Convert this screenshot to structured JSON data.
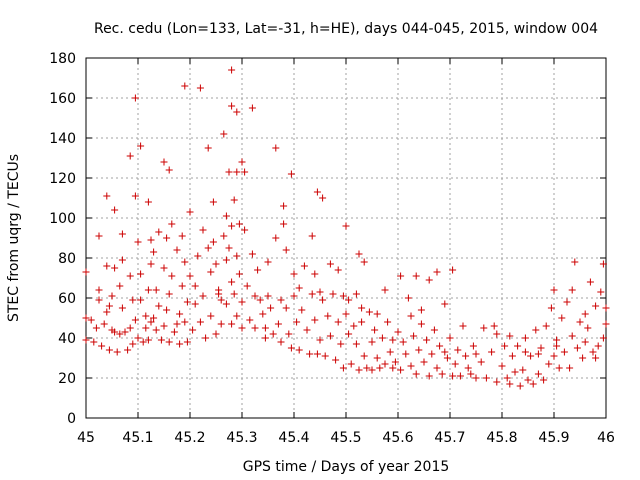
{
  "chart_data": {
    "type": "scatter",
    "title": "Rec. cedu (Lon=133, Lat=-31, h=HE), days 044-045, 2015, window 004",
    "xlabel": "GPS time / Days of year 2015",
    "ylabel": "STEC from uqrg / TECUs",
    "xlim": [
      45,
      46
    ],
    "ylim": [
      0,
      180
    ],
    "xticks": [
      45,
      45.1,
      45.2,
      45.3,
      45.4,
      45.5,
      45.6,
      45.7,
      45.8,
      45.9,
      46
    ],
    "xtick_labels": [
      "45",
      "45.1",
      "45.2",
      "45.3",
      "45.4",
      "45.5",
      "45.6",
      "45.7",
      "45.8",
      "45.9",
      "46"
    ],
    "yticks": [
      0,
      20,
      40,
      60,
      80,
      100,
      120,
      140,
      160,
      180
    ],
    "ytick_labels": [
      "0",
      "20",
      "40",
      "60",
      "80",
      "100",
      "120",
      "140",
      "160",
      "180"
    ],
    "grid": true,
    "marker": "+",
    "color": "#cc0000",
    "series": [
      {
        "name": "STEC",
        "points": [
          [
            45.0,
            50
          ],
          [
            45.0,
            73
          ],
          [
            45.0,
            39
          ],
          [
            45.01,
            49
          ],
          [
            45.015,
            38
          ],
          [
            45.02,
            45
          ],
          [
            45.025,
            59
          ],
          [
            45.025,
            64
          ],
          [
            45.025,
            91
          ],
          [
            45.03,
            36
          ],
          [
            45.035,
            47
          ],
          [
            45.04,
            76
          ],
          [
            45.04,
            111
          ],
          [
            45.04,
            53
          ],
          [
            45.045,
            34
          ],
          [
            45.05,
            44
          ],
          [
            45.05,
            61
          ],
          [
            45.055,
            104
          ],
          [
            45.055,
            75
          ],
          [
            45.055,
            43
          ],
          [
            45.06,
            33
          ],
          [
            45.065,
            42
          ],
          [
            45.065,
            66
          ],
          [
            45.07,
            92
          ],
          [
            45.07,
            79
          ],
          [
            45.07,
            55
          ],
          [
            45.075,
            43
          ],
          [
            45.08,
            34
          ],
          [
            45.085,
            131
          ],
          [
            45.085,
            71
          ],
          [
            45.085,
            45
          ],
          [
            45.09,
            59
          ],
          [
            45.09,
            37
          ],
          [
            45.095,
            160
          ],
          [
            45.095,
            111
          ],
          [
            45.095,
            49
          ],
          [
            45.1,
            40
          ],
          [
            45.1,
            88
          ],
          [
            45.105,
            136
          ],
          [
            45.105,
            72
          ],
          [
            45.105,
            59
          ],
          [
            45.11,
            38
          ],
          [
            45.115,
            45
          ],
          [
            45.115,
            51
          ],
          [
            45.12,
            108
          ],
          [
            45.12,
            64
          ],
          [
            45.12,
            39
          ],
          [
            45.125,
            89
          ],
          [
            45.125,
            77
          ],
          [
            45.125,
            48
          ],
          [
            45.13,
            83
          ],
          [
            45.135,
            64
          ],
          [
            45.135,
            44
          ],
          [
            45.14,
            93
          ],
          [
            45.14,
            56
          ],
          [
            45.145,
            39
          ],
          [
            45.15,
            128
          ],
          [
            45.15,
            75
          ],
          [
            45.15,
            46
          ],
          [
            45.155,
            90
          ],
          [
            45.155,
            54
          ],
          [
            45.16,
            124
          ],
          [
            45.16,
            62
          ],
          [
            45.16,
            38
          ],
          [
            45.165,
            97
          ],
          [
            45.165,
            71
          ],
          [
            45.17,
            43
          ],
          [
            45.175,
            84
          ],
          [
            45.18,
            52
          ],
          [
            45.18,
            37
          ],
          [
            45.185,
            91
          ],
          [
            45.185,
            66
          ],
          [
            45.19,
            166
          ],
          [
            45.19,
            78
          ],
          [
            45.19,
            48
          ],
          [
            45.195,
            58
          ],
          [
            45.195,
            38
          ],
          [
            45.2,
            103
          ],
          [
            45.2,
            71
          ],
          [
            45.205,
            44
          ],
          [
            45.21,
            66
          ],
          [
            45.21,
            57
          ],
          [
            45.215,
            81
          ],
          [
            45.22,
            165
          ],
          [
            45.22,
            48
          ],
          [
            45.225,
            94
          ],
          [
            45.225,
            61
          ],
          [
            45.23,
            40
          ],
          [
            45.235,
            135
          ],
          [
            45.235,
            85
          ],
          [
            45.24,
            73
          ],
          [
            45.24,
            51
          ],
          [
            45.245,
            108
          ],
          [
            45.245,
            88
          ],
          [
            45.25,
            77
          ],
          [
            45.25,
            42
          ],
          [
            45.255,
            64
          ],
          [
            45.26,
            59
          ],
          [
            45.26,
            47
          ],
          [
            45.265,
            142
          ],
          [
            45.265,
            91
          ],
          [
            45.27,
            101
          ],
          [
            45.27,
            79
          ],
          [
            45.27,
            57
          ],
          [
            45.275,
            123
          ],
          [
            45.275,
            85
          ],
          [
            45.28,
            174
          ],
          [
            45.28,
            156
          ],
          [
            45.28,
            96
          ],
          [
            45.28,
            68
          ],
          [
            45.28,
            47
          ],
          [
            45.285,
            109
          ],
          [
            45.285,
            62
          ],
          [
            45.29,
            153
          ],
          [
            45.29,
            123
          ],
          [
            45.29,
            81
          ],
          [
            45.29,
            51
          ],
          [
            45.295,
            97
          ],
          [
            45.295,
            72
          ],
          [
            45.3,
            128
          ],
          [
            45.3,
            58
          ],
          [
            45.3,
            45
          ],
          [
            45.305,
            123
          ],
          [
            45.305,
            94
          ],
          [
            45.31,
            66
          ],
          [
            45.315,
            49
          ],
          [
            45.32,
            155
          ],
          [
            45.32,
            82
          ],
          [
            45.325,
            61
          ],
          [
            45.325,
            45
          ],
          [
            45.33,
            74
          ],
          [
            45.335,
            59
          ],
          [
            45.34,
            52
          ],
          [
            45.345,
            45
          ],
          [
            45.35,
            78
          ],
          [
            45.35,
            61
          ],
          [
            45.355,
            55
          ],
          [
            45.36,
            42
          ],
          [
            45.365,
            135
          ],
          [
            45.365,
            90
          ],
          [
            45.37,
            47
          ],
          [
            45.375,
            59
          ],
          [
            45.375,
            38
          ],
          [
            45.38,
            106
          ],
          [
            45.38,
            97
          ],
          [
            45.385,
            84
          ],
          [
            45.385,
            55
          ],
          [
            45.39,
            42
          ],
          [
            45.395,
            122
          ],
          [
            45.395,
            35
          ],
          [
            45.4,
            72
          ],
          [
            45.4,
            61
          ],
          [
            45.405,
            48
          ],
          [
            45.41,
            34
          ],
          [
            45.415,
            54
          ],
          [
            45.42,
            76
          ],
          [
            45.425,
            44
          ],
          [
            45.43,
            32
          ],
          [
            45.435,
            91
          ],
          [
            45.435,
            62
          ],
          [
            45.44,
            49
          ],
          [
            45.445,
            113
          ],
          [
            45.445,
            32
          ],
          [
            45.45,
            63
          ],
          [
            45.45,
            39
          ],
          [
            45.455,
            110
          ],
          [
            45.455,
            59
          ],
          [
            45.46,
            31
          ],
          [
            45.465,
            51
          ],
          [
            45.47,
            77
          ],
          [
            45.47,
            41
          ],
          [
            45.475,
            62
          ],
          [
            45.48,
            29
          ],
          [
            45.485,
            74
          ],
          [
            45.485,
            48
          ],
          [
            45.49,
            37
          ],
          [
            45.495,
            61
          ],
          [
            45.495,
            25
          ],
          [
            45.5,
            96
          ],
          [
            45.5,
            52
          ],
          [
            45.505,
            59
          ],
          [
            45.505,
            42
          ],
          [
            45.51,
            27
          ],
          [
            45.515,
            46
          ],
          [
            45.52,
            62
          ],
          [
            45.52,
            37
          ],
          [
            45.525,
            82
          ],
          [
            45.525,
            24
          ],
          [
            45.53,
            48
          ],
          [
            45.535,
            78
          ],
          [
            45.535,
            31
          ],
          [
            45.54,
            25
          ],
          [
            45.545,
            53
          ],
          [
            45.55,
            38
          ],
          [
            45.55,
            24
          ],
          [
            45.555,
            44
          ],
          [
            45.56,
            30
          ],
          [
            45.565,
            25
          ],
          [
            45.57,
            40
          ],
          [
            45.575,
            64
          ],
          [
            45.575,
            27
          ],
          [
            45.58,
            48
          ],
          [
            45.585,
            33
          ],
          [
            45.59,
            25
          ],
          [
            45.595,
            28
          ],
          [
            45.6,
            43
          ],
          [
            45.605,
            71
          ],
          [
            45.605,
            24
          ],
          [
            45.61,
            38
          ],
          [
            45.615,
            32
          ],
          [
            45.62,
            60
          ],
          [
            45.625,
            26
          ],
          [
            45.63,
            41
          ],
          [
            45.635,
            71
          ],
          [
            45.635,
            22
          ],
          [
            45.64,
            34
          ],
          [
            45.645,
            47
          ],
          [
            45.65,
            28
          ],
          [
            45.655,
            39
          ],
          [
            45.66,
            69
          ],
          [
            45.66,
            21
          ],
          [
            45.665,
            32
          ],
          [
            45.67,
            44
          ],
          [
            45.675,
            73
          ],
          [
            45.675,
            25
          ],
          [
            45.68,
            36
          ],
          [
            45.685,
            22
          ],
          [
            45.69,
            57
          ],
          [
            45.695,
            30
          ],
          [
            45.7,
            40
          ],
          [
            45.705,
            74
          ],
          [
            45.705,
            21
          ],
          [
            45.71,
            27
          ],
          [
            45.715,
            34
          ],
          [
            45.72,
            21
          ],
          [
            45.73,
            31
          ],
          [
            45.735,
            25
          ],
          [
            45.74,
            22
          ],
          [
            45.745,
            36
          ],
          [
            45.75,
            20
          ],
          [
            45.76,
            28
          ],
          [
            45.765,
            45
          ],
          [
            45.77,
            20
          ],
          [
            45.78,
            33
          ],
          [
            45.785,
            46
          ],
          [
            45.79,
            18
          ],
          [
            45.8,
            26
          ],
          [
            45.805,
            36
          ],
          [
            45.81,
            20
          ],
          [
            45.815,
            17
          ],
          [
            45.82,
            31
          ],
          [
            45.825,
            23
          ],
          [
            45.83,
            36
          ],
          [
            45.835,
            16
          ],
          [
            45.84,
            24
          ],
          [
            45.845,
            40
          ],
          [
            45.85,
            19
          ],
          [
            45.855,
            31
          ],
          [
            45.86,
            17
          ],
          [
            45.865,
            44
          ],
          [
            45.87,
            22
          ],
          [
            45.875,
            35
          ],
          [
            45.88,
            19
          ],
          [
            45.885,
            46
          ],
          [
            45.89,
            27
          ],
          [
            45.895,
            55
          ],
          [
            45.9,
            31
          ],
          [
            45.9,
            64
          ],
          [
            45.905,
            39
          ],
          [
            45.91,
            25
          ],
          [
            45.915,
            50
          ],
          [
            45.92,
            33
          ],
          [
            45.925,
            58
          ],
          [
            45.93,
            25
          ],
          [
            45.935,
            64
          ],
          [
            45.94,
            78
          ],
          [
            45.945,
            35
          ],
          [
            45.95,
            48
          ],
          [
            45.955,
            30
          ],
          [
            45.96,
            38
          ],
          [
            45.965,
            45
          ],
          [
            45.97,
            68
          ],
          [
            45.975,
            33
          ],
          [
            45.98,
            56
          ],
          [
            45.985,
            36
          ],
          [
            45.99,
            63
          ],
          [
            45.995,
            77
          ],
          [
            45.995,
            40
          ],
          [
            46.0,
            55
          ],
          [
            46.0,
            47
          ],
          [
            45.045,
            56
          ],
          [
            45.13,
            50
          ],
          [
            45.175,
            47
          ],
          [
            45.255,
            62
          ],
          [
            45.345,
            40
          ],
          [
            45.41,
            65
          ],
          [
            45.44,
            72
          ],
          [
            45.53,
            55
          ],
          [
            45.56,
            52
          ],
          [
            45.59,
            39
          ],
          [
            45.625,
            51
          ],
          [
            45.645,
            54
          ],
          [
            45.69,
            33
          ],
          [
            45.725,
            46
          ],
          [
            45.75,
            32
          ],
          [
            45.79,
            42
          ],
          [
            45.815,
            41
          ],
          [
            45.845,
            33
          ],
          [
            45.87,
            32
          ],
          [
            45.905,
            36
          ],
          [
            45.935,
            41
          ],
          [
            45.96,
            52
          ],
          [
            45.98,
            30
          ]
        ]
      }
    ]
  }
}
